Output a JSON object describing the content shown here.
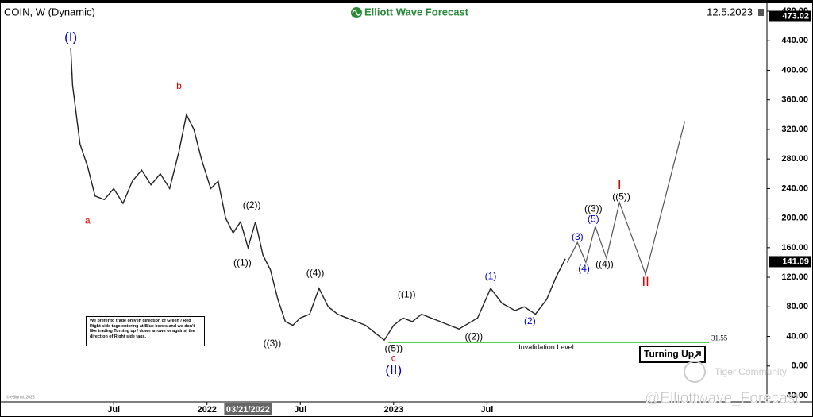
{
  "chart_data": {
    "type": "line",
    "title": "COIN, W (Dynamic)",
    "brand": "Elliott Wave Forecast",
    "date": "12.5.2023",
    "color": "#222222",
    "x": [
      2021.27,
      2021.28,
      2021.32,
      2021.36,
      2021.4,
      2021.45,
      2021.5,
      2021.55,
      2021.6,
      2021.65,
      2021.7,
      2021.75,
      2021.8,
      2021.85,
      2021.89,
      2021.93,
      2021.97,
      2022.02,
      2022.06,
      2022.1,
      2022.14,
      2022.18,
      2022.22,
      2022.26,
      2022.3,
      2022.34,
      2022.38,
      2022.42,
      2022.46,
      2022.5,
      2022.55,
      2022.6,
      2022.65,
      2022.7,
      2022.75,
      2022.8,
      2022.85,
      2022.9,
      2022.95,
      2023.0,
      2023.05,
      2023.1,
      2023.15,
      2023.2,
      2023.25,
      2023.3,
      2023.35,
      2023.45,
      2023.52,
      2023.58,
      2023.65,
      2023.7,
      2023.76,
      2023.82,
      2023.87,
      2023.92
    ],
    "values": [
      430,
      380,
      300,
      270,
      230,
      225,
      240,
      220,
      250,
      265,
      245,
      260,
      240,
      290,
      340,
      320,
      280,
      240,
      250,
      200,
      180,
      195,
      160,
      195,
      150,
      130,
      90,
      60,
      55,
      65,
      70,
      105,
      80,
      70,
      65,
      60,
      55,
      45,
      35,
      55,
      65,
      60,
      70,
      65,
      60,
      55,
      50,
      65,
      105,
      85,
      75,
      80,
      70,
      90,
      120,
      145
    ],
    "projection": {
      "color": "#555555",
      "x": [
        2023.93,
        2023.985,
        2024.03,
        2024.08,
        2024.14,
        2024.21,
        2024.35,
        2024.56
      ],
      "values": [
        140,
        167,
        140,
        189,
        146,
        221,
        124,
        331
      ]
    },
    "xlim": [
      2020.891,
      2024.996
    ],
    "xticks": [
      {
        "value": 2021.5,
        "label": "Jul"
      },
      {
        "value": 2022.0,
        "label": "2022"
      },
      {
        "value": 2022.5,
        "label": "Jul"
      },
      {
        "value": 2023.0,
        "label": "2023"
      },
      {
        "value": 2023.5,
        "label": "Jul"
      }
    ],
    "crosshair": {
      "value": 2022.22,
      "label": "03/21/2022"
    },
    "ylim": [
      -40,
      480
    ],
    "yticks": [
      {
        "value": 480,
        "label": "480.00"
      },
      {
        "value": 440,
        "label": "440.00"
      },
      {
        "value": 400,
        "label": "400.00"
      },
      {
        "value": 360,
        "label": "360.00"
      },
      {
        "value": 320,
        "label": "320.00"
      },
      {
        "value": 280,
        "label": "280.00"
      },
      {
        "value": 240,
        "label": "240.00"
      },
      {
        "value": 200,
        "label": "200.00"
      },
      {
        "value": 160,
        "label": "160.00"
      },
      {
        "value": 120,
        "label": "120.00"
      },
      {
        "value": 80,
        "label": "80.00"
      },
      {
        "value": 40,
        "label": "40.00"
      },
      {
        "value": 0,
        "label": "0.00"
      },
      {
        "value": -40,
        "label": "-40.00"
      }
    ],
    "price_markers": [
      473.02,
      141.09
    ],
    "invalidation": {
      "value": 31.55,
      "text": "Invalidation Level",
      "color": "#33cc33"
    },
    "wave_labels": [
      {
        "text": "(I)",
        "x": 2021.27,
        "y": 444,
        "color": "#0000cc"
      },
      {
        "text": "a",
        "x": 2021.36,
        "y": 196,
        "color": "#dd0000"
      },
      {
        "text": "b",
        "x": 2021.85,
        "y": 378,
        "color": "#dd0000"
      },
      {
        "text": "((2))",
        "x": 2022.24,
        "y": 217,
        "color": "#000000"
      },
      {
        "text": "((1))",
        "x": 2022.19,
        "y": 139,
        "color": "#000000"
      },
      {
        "text": "((3))",
        "x": 2022.35,
        "y": 30,
        "color": "#000000"
      },
      {
        "text": "((4))",
        "x": 2022.58,
        "y": 125,
        "color": "#000000"
      },
      {
        "text": "((5))",
        "x": 2023.0,
        "y": 23,
        "color": "#000000"
      },
      {
        "text": "c",
        "x": 2023.0,
        "y": 10,
        "color": "#dd0000"
      },
      {
        "text": "(II)",
        "x": 2023.0,
        "y": -6,
        "color": "#0000cc"
      },
      {
        "text": "((1))",
        "x": 2023.07,
        "y": 96,
        "color": "#000000"
      },
      {
        "text": "((2))",
        "x": 2023.43,
        "y": 39,
        "color": "#000000"
      },
      {
        "text": "(1)",
        "x": 2023.52,
        "y": 121,
        "color": "#0000cc"
      },
      {
        "text": "(2)",
        "x": 2023.73,
        "y": 60,
        "color": "#0000cc"
      },
      {
        "text": "(3)",
        "x": 2023.985,
        "y": 174,
        "color": "#0000cc"
      },
      {
        "text": "(4)",
        "x": 2024.02,
        "y": 131,
        "color": "#0000cc"
      },
      {
        "text": "(5)",
        "x": 2024.07,
        "y": 198,
        "color": "#0000cc"
      },
      {
        "text": "((3))",
        "x": 2024.07,
        "y": 212,
        "color": "#000000"
      },
      {
        "text": "((4))",
        "x": 2024.13,
        "y": 137,
        "color": "#000000"
      },
      {
        "text": "((5))",
        "x": 2024.22,
        "y": 228,
        "color": "#000000"
      },
      {
        "text": "I",
        "x": 2024.21,
        "y": 244,
        "color": "#dd0000"
      },
      {
        "text": "II",
        "x": 2024.35,
        "y": 113,
        "color": "#dd0000"
      }
    ],
    "note": "We prefer to trade only in direction of Green / Red Right side tags entering at Blue boxes and we don't like trading Turning up / down arrows or against the direction of Right side tags.",
    "turning_up": "Turning Up",
    "watermark": "Tiger Community",
    "handle": "@Elliottwave_Forecast",
    "source": "© eSignal, 2023"
  }
}
